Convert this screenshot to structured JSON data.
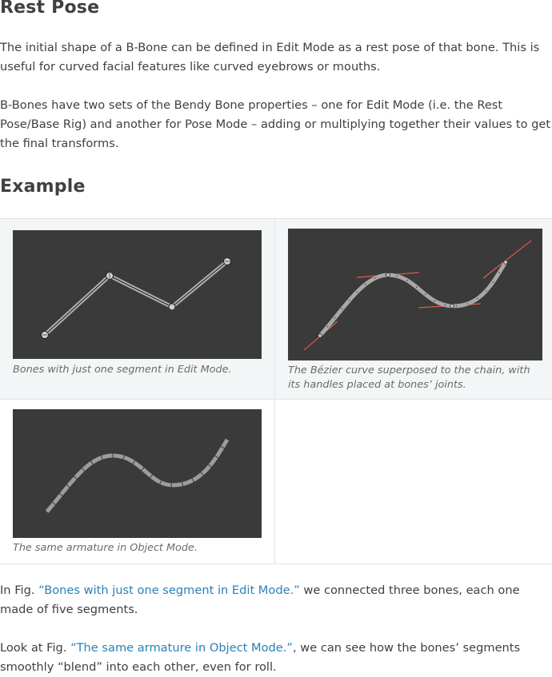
{
  "sections": {
    "rest_pose_heading": "Rest Pose",
    "example_heading": "Example"
  },
  "paragraphs": {
    "p1": "The initial shape of a B-Bone can be defined in Edit Mode as a rest pose of that bone. This is useful for curved facial features like curved eyebrows or mouths.",
    "p2": "B-Bones have two sets of the Bendy Bone properties – one for Edit Mode (i.e. the Rest Pose/Base Rig) and another for Pose Mode – adding or multiplying together their values to get the final transforms.",
    "p3_prefix": "In Fig. ",
    "p3_link": "“Bones with just one segment in Edit Mode.”",
    "p3_suffix": " we connected three bones, each one made of five segments.",
    "p4_prefix": "Look at Fig. ",
    "p4_link": "“The same armature in Object Mode.”",
    "p4_suffix": ", we can see how the bones’ segments smoothly “blend” into each other, even for roll."
  },
  "figures": {
    "fig1_caption": "Bones with just one segment in Edit Mode.",
    "fig2_caption": "The Bézier curve superposed to the chain, with its handles placed at bones’ joints.",
    "fig3_caption": "The same armature in Object Mode."
  },
  "colors": {
    "link": "#2980b9",
    "viewport_bg": "#3a3a3a",
    "handle_line": "#e05a4a",
    "bone": "#a8a8a8"
  }
}
